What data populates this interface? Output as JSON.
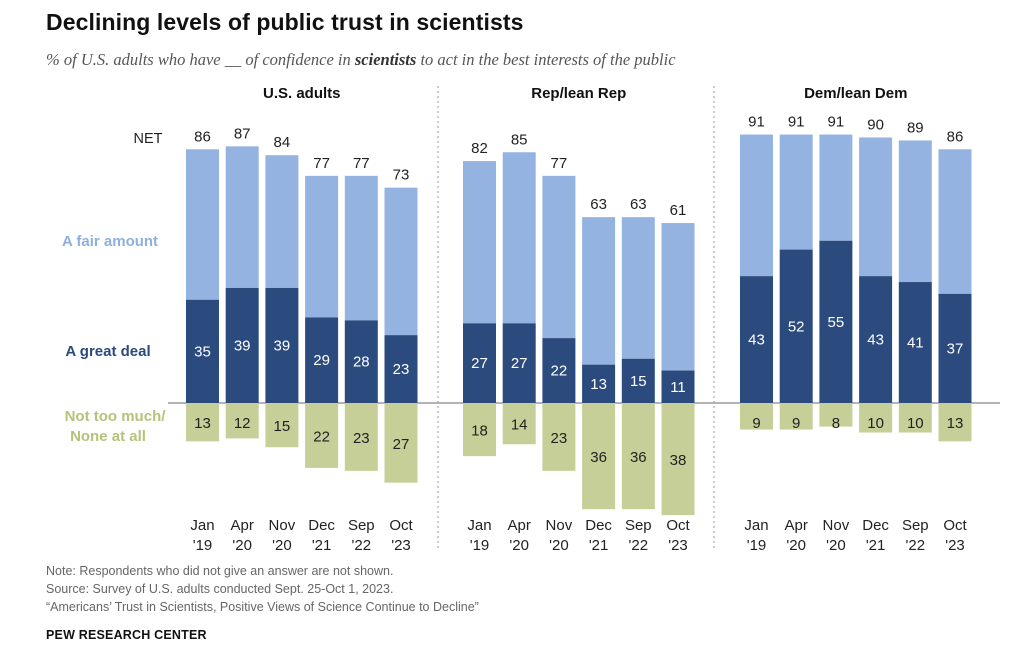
{
  "title": "Declining levels of public trust in scientists",
  "subtitle": {
    "before": "% of U.S. adults who have __ of confidence in ",
    "emph": "scientists",
    "after": " to act in the best interests of the public"
  },
  "colors": {
    "fair_amount": "#95b3e0",
    "great_deal": "#2b4a7d",
    "not_too_much": "#c6cf97",
    "fair_label": "#8fb0de",
    "great_label": "#2b4a7d",
    "not_too_label": "#b5c27a"
  },
  "chart_data": {
    "type": "bar",
    "stacked": "diverging",
    "row_labels": {
      "net": "NET",
      "fair_amount": "A fair amount",
      "great_deal": "A great deal",
      "not_too_much_line1": "Not too much/",
      "not_too_much_line2": "None at all"
    },
    "categories": [
      {
        "month": "Jan",
        "year": "'19"
      },
      {
        "month": "Apr",
        "year": "'20"
      },
      {
        "month": "Nov",
        "year": "'20"
      },
      {
        "month": "Dec",
        "year": "'21"
      },
      {
        "month": "Sep",
        "year": "'22"
      },
      {
        "month": "Oct",
        "year": "'23"
      }
    ],
    "panels": [
      {
        "name": "U.S. adults",
        "net": [
          86,
          87,
          84,
          77,
          77,
          73
        ],
        "great_deal": [
          35,
          39,
          39,
          29,
          28,
          23
        ],
        "not_too_much": [
          13,
          12,
          15,
          22,
          23,
          27
        ]
      },
      {
        "name": "Rep/lean Rep",
        "net": [
          82,
          85,
          77,
          63,
          63,
          61
        ],
        "great_deal": [
          27,
          27,
          22,
          13,
          15,
          11
        ],
        "not_too_much": [
          18,
          14,
          23,
          36,
          36,
          38
        ]
      },
      {
        "name": "Dem/lean Dem",
        "net": [
          91,
          91,
          91,
          90,
          89,
          86
        ],
        "great_deal": [
          43,
          52,
          55,
          43,
          41,
          37
        ],
        "not_too_much": [
          9,
          9,
          8,
          10,
          10,
          13
        ]
      }
    ]
  },
  "notes": [
    "Note: Respondents who did not give an answer are not shown.",
    "Source: Survey of U.S. adults conducted Sept. 25-Oct 1, 2023.",
    "“Americans’ Trust in Scientists, Positive Views of Science Continue to Decline”"
  ],
  "org": "PEW RESEARCH CENTER"
}
